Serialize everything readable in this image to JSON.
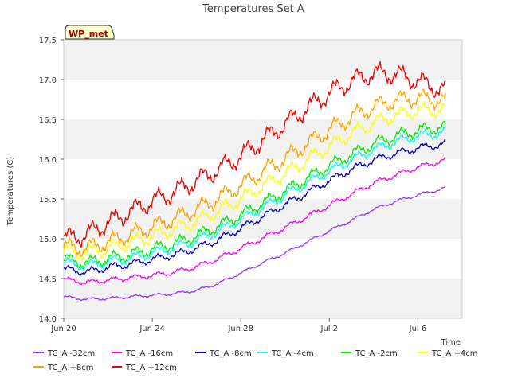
{
  "chart_data": {
    "type": "line",
    "title": "Temperatures Set A",
    "xlabel": "Time",
    "ylabel": "Temperatures (C)",
    "badge": "WP_met",
    "x_range": [
      "2024-06-20",
      "2024-07-08"
    ],
    "x_ticks": [
      {
        "date": "2024-06-20",
        "label": "Jun 20"
      },
      {
        "date": "2024-06-24",
        "label": "Jun 24"
      },
      {
        "date": "2024-06-28",
        "label": "Jun 28"
      },
      {
        "date": "2024-07-02",
        "label": "Jul 2"
      },
      {
        "date": "2024-07-06",
        "label": "Jul 6"
      }
    ],
    "ylim": [
      14.0,
      17.5
    ],
    "y_ticks": [
      "14.0",
      "14.5",
      "15.0",
      "15.5",
      "16.0",
      "16.5",
      "17.0",
      "17.5"
    ],
    "grid": "alternating horizontal bands",
    "legend_position": "bottom",
    "series": [
      {
        "name": "TC_A -32cm",
        "color": "#9933ff",
        "x": [
          "2024-06-20",
          "2024-06-21",
          "2024-06-22",
          "2024-06-23",
          "2024-06-24",
          "2024-06-25",
          "2024-06-26",
          "2024-06-27",
          "2024-06-28",
          "2024-06-29",
          "2024-06-30",
          "2024-07-01",
          "2024-07-02",
          "2024-07-03",
          "2024-07-04",
          "2024-07-05",
          "2024-07-06",
          "2024-07-07",
          "2024-07-08"
        ],
        "y": [
          14.27,
          14.24,
          14.25,
          14.27,
          14.29,
          14.31,
          14.35,
          14.44,
          14.57,
          14.7,
          14.82,
          14.96,
          15.1,
          15.23,
          15.37,
          15.47,
          15.55,
          15.62,
          15.71
        ]
      },
      {
        "name": "TC_A -16cm",
        "color": "#ff00ff",
        "x": [
          "2024-06-20",
          "2024-06-21",
          "2024-06-22",
          "2024-06-23",
          "2024-06-24",
          "2024-06-25",
          "2024-06-26",
          "2024-06-27",
          "2024-06-28",
          "2024-06-29",
          "2024-06-30",
          "2024-07-01",
          "2024-07-02",
          "2024-07-03",
          "2024-07-04",
          "2024-07-05",
          "2024-07-06",
          "2024-07-07",
          "2024-07-08"
        ],
        "y": [
          14.49,
          14.45,
          14.48,
          14.51,
          14.54,
          14.58,
          14.65,
          14.75,
          14.88,
          15.01,
          15.14,
          15.28,
          15.42,
          15.56,
          15.7,
          15.8,
          15.9,
          15.97,
          16.05
        ]
      },
      {
        "name": "TC_A -8cm",
        "color": "#0000cc",
        "x": [
          "2024-06-20",
          "2024-06-21",
          "2024-06-22",
          "2024-06-23",
          "2024-06-24",
          "2024-06-25",
          "2024-06-26",
          "2024-06-27",
          "2024-06-28",
          "2024-06-29",
          "2024-06-30",
          "2024-07-01",
          "2024-07-02",
          "2024-07-03",
          "2024-07-04",
          "2024-07-05",
          "2024-07-06",
          "2024-07-07",
          "2024-07-08"
        ],
        "y": [
          14.62,
          14.58,
          14.64,
          14.68,
          14.74,
          14.8,
          14.88,
          14.99,
          15.13,
          15.28,
          15.43,
          15.58,
          15.73,
          15.87,
          15.99,
          16.07,
          16.14,
          16.18,
          16.23
        ]
      },
      {
        "name": "TC_A -4cm",
        "color": "#00ffff",
        "x": [
          "2024-06-20",
          "2024-06-21",
          "2024-06-22",
          "2024-06-23",
          "2024-06-24",
          "2024-06-25",
          "2024-06-26",
          "2024-06-27",
          "2024-06-28",
          "2024-06-29",
          "2024-06-30",
          "2024-07-01",
          "2024-07-02",
          "2024-07-03",
          "2024-07-04",
          "2024-07-05",
          "2024-07-06",
          "2024-07-07",
          "2024-07-08"
        ],
        "y": [
          14.7,
          14.66,
          14.71,
          14.75,
          14.82,
          14.89,
          14.98,
          15.1,
          15.24,
          15.39,
          15.55,
          15.7,
          15.85,
          15.99,
          16.12,
          16.22,
          16.29,
          16.33,
          16.36
        ]
      },
      {
        "name": "TC_A -2cm",
        "color": "#00ee00",
        "x": [
          "2024-06-20",
          "2024-06-21",
          "2024-06-22",
          "2024-06-23",
          "2024-06-24",
          "2024-06-25",
          "2024-06-26",
          "2024-06-27",
          "2024-06-28",
          "2024-06-29",
          "2024-06-30",
          "2024-07-01",
          "2024-07-02",
          "2024-07-03",
          "2024-07-04",
          "2024-07-05",
          "2024-07-06",
          "2024-07-07",
          "2024-07-08"
        ],
        "y": [
          14.74,
          14.7,
          14.75,
          14.8,
          14.87,
          14.94,
          15.04,
          15.16,
          15.3,
          15.45,
          15.6,
          15.76,
          15.92,
          16.06,
          16.19,
          16.29,
          16.36,
          16.4,
          16.43
        ]
      },
      {
        "name": "TC_A +4cm",
        "color": "#ffff00",
        "x": [
          "2024-06-20",
          "2024-06-21",
          "2024-06-22",
          "2024-06-23",
          "2024-06-24",
          "2024-06-25",
          "2024-06-26",
          "2024-06-27",
          "2024-06-28",
          "2024-06-29",
          "2024-06-30",
          "2024-07-01",
          "2024-07-02",
          "2024-07-03",
          "2024-07-04",
          "2024-07-05",
          "2024-07-06",
          "2024-07-07",
          "2024-07-08"
        ],
        "y": [
          14.85,
          14.82,
          14.88,
          14.95,
          15.03,
          15.12,
          15.22,
          15.35,
          15.5,
          15.66,
          15.82,
          15.99,
          16.16,
          16.32,
          16.46,
          16.55,
          16.61,
          16.62,
          16.6
        ]
      },
      {
        "name": "TC_A +8cm",
        "color": "#ffa500",
        "x": [
          "2024-06-20",
          "2024-06-21",
          "2024-06-22",
          "2024-06-23",
          "2024-06-24",
          "2024-06-25",
          "2024-06-26",
          "2024-06-27",
          "2024-06-28",
          "2024-06-29",
          "2024-06-30",
          "2024-07-01",
          "2024-07-02",
          "2024-07-03",
          "2024-07-04",
          "2024-07-05",
          "2024-07-06",
          "2024-07-07",
          "2024-07-08"
        ],
        "y": [
          14.9,
          14.88,
          14.96,
          15.05,
          15.15,
          15.25,
          15.37,
          15.51,
          15.67,
          15.84,
          16.01,
          16.19,
          16.37,
          16.53,
          16.66,
          16.74,
          16.77,
          16.74,
          16.69
        ]
      },
      {
        "name": "TC_A +12cm",
        "color": "#ee0000",
        "x": [
          "2024-06-20",
          "2024-06-21",
          "2024-06-22",
          "2024-06-23",
          "2024-06-24",
          "2024-06-25",
          "2024-06-26",
          "2024-06-27",
          "2024-06-28",
          "2024-06-29",
          "2024-06-30",
          "2024-07-01",
          "2024-07-02",
          "2024-07-03",
          "2024-07-04",
          "2024-07-05",
          "2024-07-06",
          "2024-07-07",
          "2024-07-08"
        ],
        "y": [
          15.0,
          15.05,
          15.2,
          15.34,
          15.47,
          15.59,
          15.73,
          15.87,
          16.04,
          16.24,
          16.44,
          16.64,
          16.83,
          16.98,
          17.08,
          17.07,
          16.98,
          16.88,
          16.84
        ]
      }
    ]
  }
}
